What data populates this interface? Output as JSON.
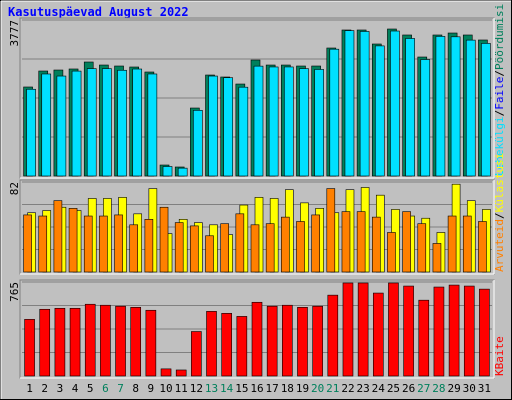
{
  "legend_separator": "/",
  "chart_data": [
    {
      "type": "bar",
      "title": "Kasutuspäevad August 2022",
      "ylim": [
        0,
        3777
      ],
      "yticks": [
        3777
      ],
      "series": [
        {
          "name": "Pöördumisi",
          "color": "#00805c",
          "values": [
            2155,
            2542,
            2566,
            2591,
            2760,
            2687,
            2663,
            2639,
            2518,
            266,
            218,
            1646,
            2445,
            2397,
            2227,
            2808,
            2687,
            2687,
            2663,
            2663,
            3099,
            3535,
            3535,
            3196,
            3559,
            3414,
            2881,
            3414,
            3462,
            3414,
            3293
          ]
        },
        {
          "name": "Lehekülgi",
          "color": "#00e0ff",
          "values": [
            2100,
            2470,
            2420,
            2540,
            2600,
            2600,
            2560,
            2590,
            2470,
            230,
            190,
            1590,
            2420,
            2380,
            2150,
            2660,
            2640,
            2640,
            2600,
            2580,
            3070,
            3520,
            3500,
            3150,
            3510,
            3330,
            2820,
            3380,
            3370,
            3290,
            3210
          ]
        }
      ],
      "extra_legend": {
        "name": "Faile",
        "color": "#0000ff"
      }
    },
    {
      "type": "bar",
      "ylim": [
        0,
        82
      ],
      "yticks": [
        82
      ],
      "series": [
        {
          "name": "Külastusi",
          "color": "#ffff00",
          "values": [
            54,
            56,
            59,
            56,
            67,
            67,
            68,
            53,
            76,
            35,
            48,
            45,
            43,
            34,
            61,
            68,
            67,
            75,
            63,
            58,
            54,
            75,
            77,
            70,
            57,
            51,
            49,
            36,
            80,
            65,
            57
          ]
        },
        {
          "name": "Arvuteid",
          "color": "#ff8000",
          "values": [
            52,
            51,
            65,
            58,
            51,
            51,
            52,
            43,
            48,
            59,
            45,
            42,
            33,
            44,
            53,
            43,
            44,
            50,
            46,
            52,
            76,
            55,
            55,
            50,
            36,
            55,
            44,
            26,
            51,
            51,
            46
          ]
        }
      ]
    },
    {
      "type": "bar",
      "ylim": [
        0,
        765
      ],
      "yticks": [
        765
      ],
      "series": [
        {
          "name": "KBaite",
          "color": "#ff0000",
          "values": [
            461,
            543,
            551,
            551,
            584,
            576,
            568,
            559,
            535,
            58,
            49,
            362,
            526,
            510,
            485,
            600,
            568,
            576,
            559,
            568,
            658,
            757,
            757,
            675,
            757,
            732,
            617,
            724,
            740,
            732,
            707
          ]
        }
      ],
      "categories": [
        "1",
        "2",
        "3",
        "4",
        "5",
        "6",
        "7",
        "8",
        "9",
        "10",
        "11",
        "12",
        "13",
        "14",
        "15",
        "16",
        "17",
        "18",
        "19",
        "20",
        "21",
        "22",
        "23",
        "24",
        "25",
        "26",
        "27",
        "28",
        "29",
        "30",
        "31"
      ],
      "category_colors": [
        "#000000",
        "#000000",
        "#000000",
        "#000000",
        "#000000",
        "#00805c",
        "#00805c",
        "#000000",
        "#000000",
        "#000000",
        "#000000",
        "#000000",
        "#00805c",
        "#00805c",
        "#000000",
        "#000000",
        "#000000",
        "#000000",
        "#000000",
        "#00805c",
        "#00805c",
        "#000000",
        "#000000",
        "#000000",
        "#000000",
        "#000000",
        "#00805c",
        "#00805c",
        "#000000",
        "#000000",
        "#000000"
      ]
    }
  ]
}
